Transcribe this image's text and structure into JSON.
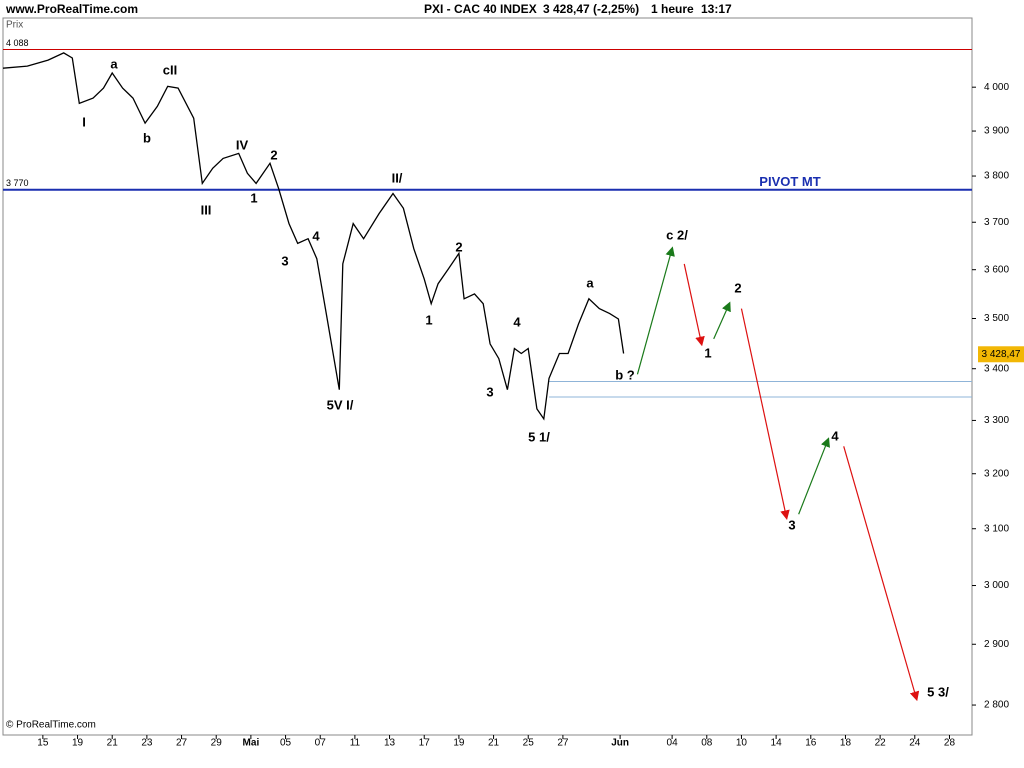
{
  "site": "www.ProRealTime.com",
  "footer": "© ProRealTime.com",
  "header": {
    "instrument": "PXI - CAC 40 INDEX",
    "quote": "3 428,47 (-2,25%)",
    "period": "1 heure",
    "time": "13:17"
  },
  "chart_data": {
    "type": "line",
    "y_label": "Prix",
    "log_scale": true,
    "color": "#000000",
    "xlim": [
      -2.3,
      53.6
    ],
    "ylim": [
      2752,
      4163
    ],
    "xticks": [
      {
        "value": 0,
        "label": "15"
      },
      {
        "value": 2,
        "label": "19"
      },
      {
        "value": 4,
        "label": "21"
      },
      {
        "value": 6,
        "label": "23"
      },
      {
        "value": 8,
        "label": "27"
      },
      {
        "value": 10,
        "label": "29"
      },
      {
        "value": 12,
        "label": "Mai"
      },
      {
        "value": 14,
        "label": "05"
      },
      {
        "value": 16,
        "label": "07"
      },
      {
        "value": 18,
        "label": "11"
      },
      {
        "value": 20,
        "label": "13"
      },
      {
        "value": 22,
        "label": "17"
      },
      {
        "value": 24,
        "label": "19"
      },
      {
        "value": 26,
        "label": "21"
      },
      {
        "value": 28,
        "label": "25"
      },
      {
        "value": 30,
        "label": "27"
      },
      {
        "value": 33.3,
        "label": "Jun"
      },
      {
        "value": 36.3,
        "label": "04"
      },
      {
        "value": 38.3,
        "label": "08"
      },
      {
        "value": 40.3,
        "label": "10"
      },
      {
        "value": 42.3,
        "label": "14"
      },
      {
        "value": 44.3,
        "label": "16"
      },
      {
        "value": 46.3,
        "label": "18"
      },
      {
        "value": 48.3,
        "label": "22"
      },
      {
        "value": 50.3,
        "label": "24"
      },
      {
        "value": 52.3,
        "label": "28"
      }
    ],
    "yticks": [
      {
        "value": 2800,
        "label": "2 800"
      },
      {
        "value": 2900,
        "label": "2 900"
      },
      {
        "value": 3000,
        "label": "3 000"
      },
      {
        "value": 3100,
        "label": "3 100"
      },
      {
        "value": 3200,
        "label": "3 200"
      },
      {
        "value": 3300,
        "label": "3 300"
      },
      {
        "value": 3400,
        "label": "3 400"
      },
      {
        "value": 3500,
        "label": "3 500"
      },
      {
        "value": 3600,
        "label": "3 600"
      },
      {
        "value": 3700,
        "label": "3 700"
      },
      {
        "value": 3800,
        "label": "3 800"
      },
      {
        "value": 3900,
        "label": "3 900"
      },
      {
        "value": 4000,
        "label": "4 000"
      }
    ],
    "x": [
      -2.3,
      -0.9,
      0.3,
      1.2,
      1.7,
      2.1,
      2.9,
      3.5,
      4.0,
      4.6,
      5.2,
      5.9,
      6.6,
      7.2,
      7.8,
      8.7,
      9.2,
      9.8,
      10.4,
      11.3,
      11.8,
      12.3,
      13.1,
      13.6,
      14.2,
      14.7,
      15.3,
      15.8,
      16.4,
      17.1,
      17.3,
      17.9,
      18.5,
      19.4,
      20.2,
      20.8,
      21.4,
      22.0,
      22.4,
      22.8,
      23.4,
      24.0,
      24.3,
      24.9,
      25.4,
      25.8,
      26.3,
      26.8,
      27.2,
      27.6,
      28.0,
      28.5,
      28.9,
      29.2,
      29.8,
      30.3,
      30.9,
      31.5,
      32.1,
      32.7,
      33.2,
      33.5
    ],
    "values": [
      4044,
      4049,
      4063,
      4080,
      4068,
      3963,
      3975,
      3998,
      4033,
      3998,
      3975,
      3918,
      3956,
      4002,
      3998,
      3929,
      3784,
      3817,
      3839,
      3850,
      3806,
      3784,
      3828,
      3773,
      3697,
      3655,
      3665,
      3623,
      3499,
      3359,
      3612,
      3697,
      3665,
      3719,
      3762,
      3730,
      3644,
      3581,
      3530,
      3571,
      3602,
      3634,
      3540,
      3550,
      3530,
      3449,
      3420,
      3359,
      3440,
      3430,
      3440,
      3322,
      3303,
      3381,
      3430,
      3430,
      3489,
      3540,
      3520,
      3510,
      3499,
      3430
    ],
    "last_price": {
      "value": 3428.47,
      "label": "3 428,47"
    },
    "levels": [
      {
        "value": 4088,
        "label": "4 088",
        "color": "#cc0000"
      },
      {
        "value": 3770,
        "label": "3 770",
        "name": "PIVOT MT",
        "color": "#1a2fb0"
      },
      {
        "value": 3375,
        "from": 29.2,
        "color": "#8fb4d8"
      },
      {
        "value": 3345,
        "from": 29.2,
        "color": "#8fb4d8"
      }
    ],
    "projections": [
      {
        "x": [
          34.3,
          36.3
        ],
        "values": [
          3389,
          3644
        ],
        "color": "#1a7a1a"
      },
      {
        "x": [
          37.0,
          38.0
        ],
        "values": [
          3612,
          3449
        ],
        "color": "#dd1111"
      },
      {
        "x": [
          38.7,
          39.6
        ],
        "values": [
          3459,
          3530
        ],
        "color": "#1a7a1a"
      },
      {
        "x": [
          40.3,
          42.9
        ],
        "values": [
          3520,
          3120
        ],
        "color": "#dd1111"
      },
      {
        "x": [
          43.6,
          45.3
        ],
        "values": [
          3126,
          3264
        ],
        "color": "#1a7a1a"
      },
      {
        "x": [
          46.2,
          50.4
        ],
        "values": [
          3251,
          2810
        ],
        "color": "#dd1111"
      }
    ],
    "annotations": [
      "I",
      "a",
      "b",
      "cII",
      "III",
      "IV",
      "2",
      "1",
      "3",
      "4",
      "5V I/",
      "II/",
      "2",
      "1",
      "3",
      "4",
      "a",
      "b ?",
      "5 1/",
      "c 2/",
      "1",
      "2",
      "3",
      "4",
      "5 3/"
    ]
  }
}
